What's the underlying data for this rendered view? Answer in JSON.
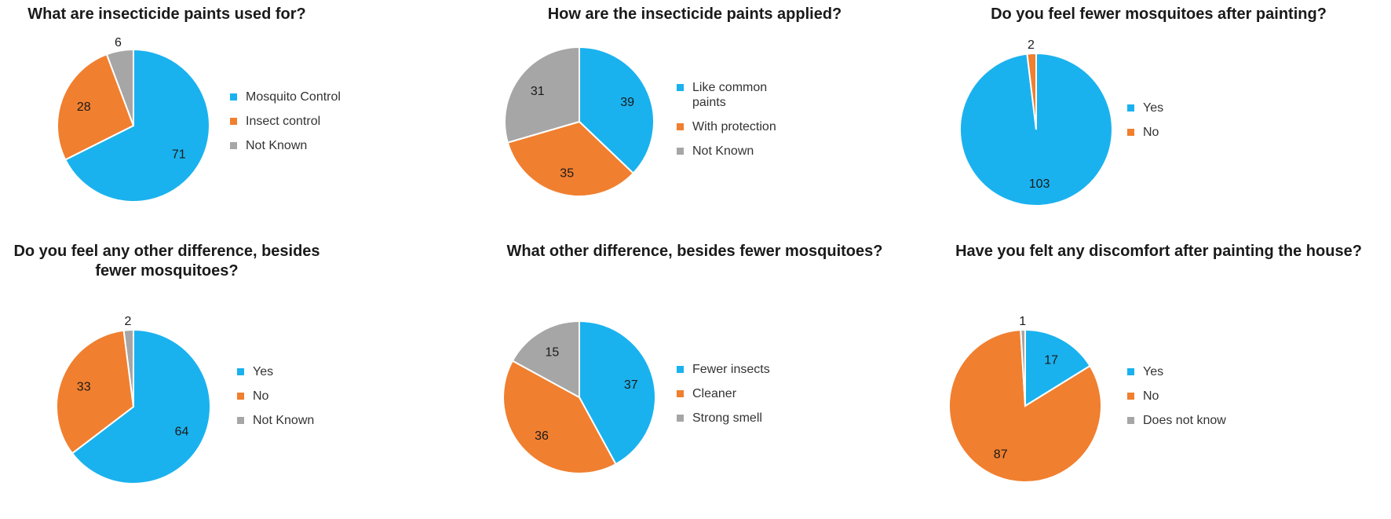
{
  "chart_data": [
    {
      "type": "pie",
      "title": "What are insecticide paints used for?",
      "categories": [
        "Mosquito Control",
        "Insect control",
        "Not Known"
      ],
      "values": [
        71,
        28,
        6
      ],
      "colors": [
        "#1ab2ee",
        "#f07f2f",
        "#a6a6a6"
      ],
      "legend": "right"
    },
    {
      "type": "pie",
      "title": "How are the insecticide paints applied?",
      "categories": [
        "Like common paints",
        "With protection",
        "Not Known"
      ],
      "values": [
        39,
        35,
        31
      ],
      "colors": [
        "#1ab2ee",
        "#f07f2f",
        "#a6a6a6"
      ],
      "legend": "right"
    },
    {
      "type": "pie",
      "title": "Do you feel fewer mosquitoes after painting?",
      "categories": [
        "Yes",
        "No"
      ],
      "values": [
        103,
        2
      ],
      "colors": [
        "#1ab2ee",
        "#f07f2f"
      ],
      "legend": "right"
    },
    {
      "type": "pie",
      "title": "Do you feel any other difference, besides fewer mosquitoes?",
      "categories": [
        "Yes",
        "No",
        "Not Known"
      ],
      "values": [
        64,
        33,
        2
      ],
      "colors": [
        "#1ab2ee",
        "#f07f2f",
        "#a6a6a6"
      ],
      "legend": "right"
    },
    {
      "type": "pie",
      "title": "What other difference, besides fewer mosquitoes?",
      "categories": [
        "Fewer insects",
        "Cleaner",
        "Strong smell"
      ],
      "values": [
        37,
        36,
        15
      ],
      "colors": [
        "#1ab2ee",
        "#f07f2f",
        "#a6a6a6"
      ],
      "legend": "right"
    },
    {
      "type": "pie",
      "title": "Have you felt any discomfort after painting the house?",
      "categories": [
        "Yes",
        "No",
        "Does not know"
      ],
      "values": [
        17,
        87,
        1
      ],
      "colors": [
        "#1ab2ee",
        "#f07f2f",
        "#a6a6a6"
      ],
      "legend": "right"
    }
  ]
}
